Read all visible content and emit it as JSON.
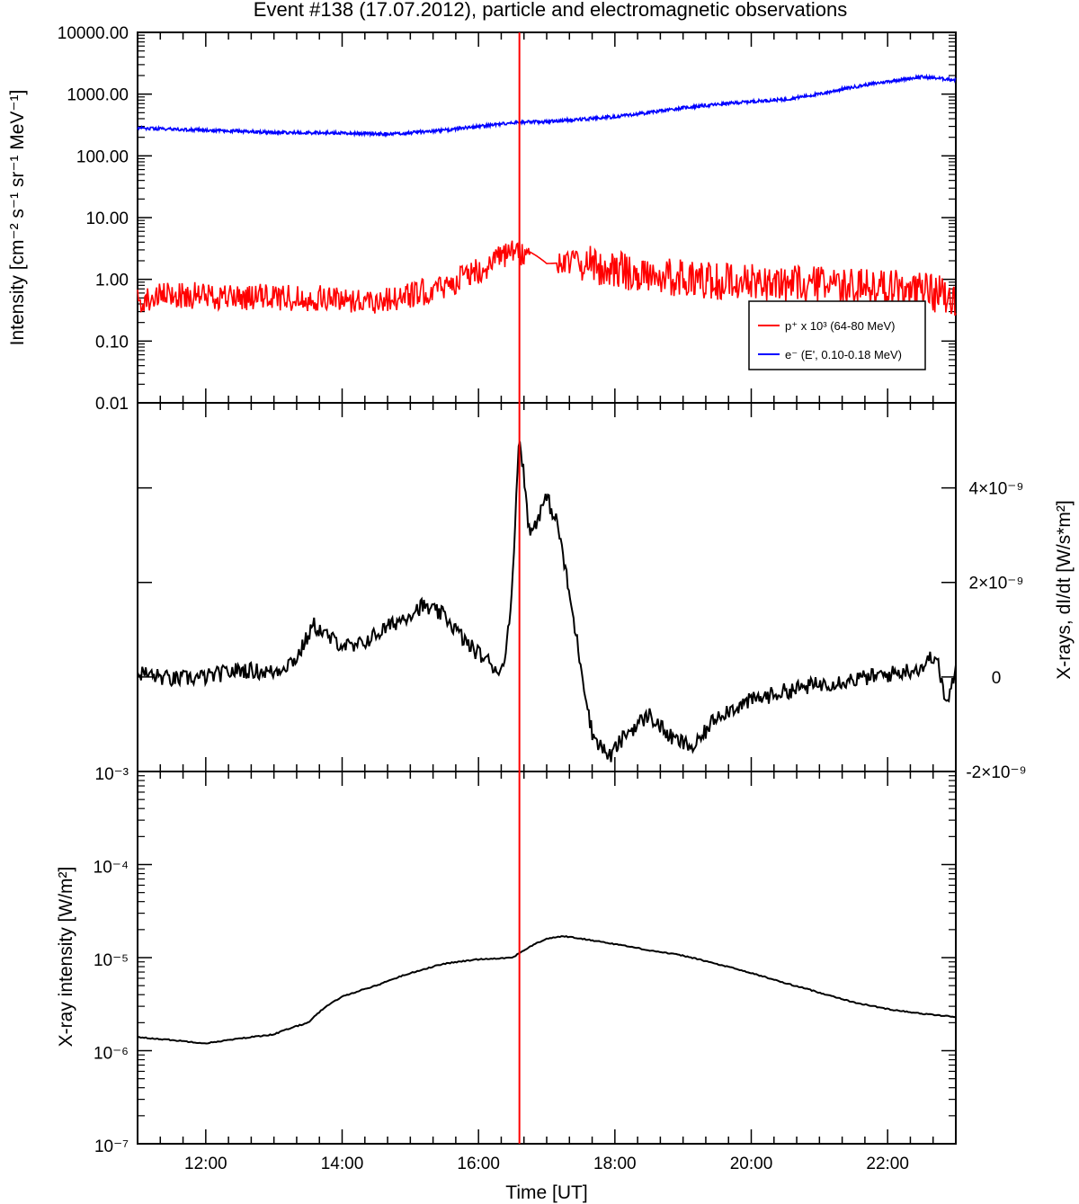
{
  "figure": {
    "title": "Event #138 (17.07.2012), particle and electromagnetic observations",
    "xlabel": "Time [UT]",
    "x_tick_labels": [
      "12:00",
      "14:00",
      "16:00",
      "18:00",
      "20:00",
      "22:00"
    ],
    "event_marker_time": "16:36"
  },
  "chart_data": [
    {
      "type": "line",
      "panel": "particles",
      "ylabel": "Intensity [cm⁻² s⁻¹ sr⁻¹ MeV⁻¹]",
      "yscale": "log",
      "ylim": [
        0.01,
        10000
      ],
      "y_tick_labels": [
        "10000.00",
        "1000.00",
        "100.00",
        "10.00",
        "1.00",
        "0.10",
        "0.01"
      ],
      "xlim": [
        "11:00",
        "23:00"
      ],
      "legend_position": "bottom-right",
      "series": [
        {
          "name": "p⁺ x 10³ (64-80 MeV)",
          "color": "#ff0000",
          "points": [
            [
              "11:00",
              0.45
            ],
            [
              "11:30",
              0.55
            ],
            [
              "12:00",
              0.55
            ],
            [
              "12:30",
              0.5
            ],
            [
              "13:00",
              0.52
            ],
            [
              "13:30",
              0.5
            ],
            [
              "14:00",
              0.48
            ],
            [
              "14:30",
              0.45
            ],
            [
              "15:00",
              0.55
            ],
            [
              "15:30",
              0.75
            ],
            [
              "16:00",
              1.4
            ],
            [
              "16:15",
              2.0
            ],
            [
              "16:30",
              2.6
            ],
            [
              "16:45",
              2.8
            ],
            [
              "17:00",
              1.8
            ],
            [
              "17:30",
              1.9
            ],
            [
              "18:00",
              1.4
            ],
            [
              "18:30",
              1.2
            ],
            [
              "19:00",
              1.05
            ],
            [
              "19:30",
              0.95
            ],
            [
              "20:00",
              0.9
            ],
            [
              "20:30",
              0.85
            ],
            [
              "21:00",
              0.8
            ],
            [
              "21:30",
              0.75
            ],
            [
              "22:00",
              0.75
            ],
            [
              "22:30",
              0.65
            ],
            [
              "23:00",
              0.5
            ]
          ]
        },
        {
          "name": "e⁻ (E', 0.10-0.18 MeV)",
          "color": "#0000ff",
          "points": [
            [
              "11:00",
              280
            ],
            [
              "12:00",
              260
            ],
            [
              "13:00",
              240
            ],
            [
              "14:00",
              235
            ],
            [
              "14:45",
              225
            ],
            [
              "15:30",
              260
            ],
            [
              "16:00",
              300
            ],
            [
              "16:36",
              350
            ],
            [
              "17:00",
              360
            ],
            [
              "17:30",
              390
            ],
            [
              "18:00",
              430
            ],
            [
              "18:30",
              500
            ],
            [
              "19:00",
              600
            ],
            [
              "19:30",
              680
            ],
            [
              "20:00",
              760
            ],
            [
              "20:30",
              820
            ],
            [
              "21:00",
              1000
            ],
            [
              "21:30",
              1300
            ],
            [
              "22:00",
              1600
            ],
            [
              "22:30",
              1900
            ],
            [
              "23:00",
              1700
            ]
          ]
        }
      ]
    },
    {
      "type": "line",
      "panel": "xray-derivative",
      "ylabel": "X-rays, dI/dt [W/s*m²]",
      "y_axis_side": "right",
      "ylim": [
        -2e-09,
        5.8e-09
      ],
      "y_tick_labels": [
        "4×10⁻⁹",
        "2×10⁻⁹",
        "0",
        "-2×10⁻⁹"
      ],
      "xlim": [
        "11:00",
        "23:00"
      ],
      "series": [
        {
          "color": "#000000",
          "points": [
            [
              "11:00",
              1e-10
            ],
            [
              "11:30",
              -5e-11
            ],
            [
              "12:00",
              0.0
            ],
            [
              "12:30",
              1.5e-10
            ],
            [
              "13:00",
              1e-10
            ],
            [
              "13:20",
              4e-10
            ],
            [
              "13:35",
              1.1e-09
            ],
            [
              "13:50",
              8e-10
            ],
            [
              "14:10",
              6e-10
            ],
            [
              "14:30",
              9e-10
            ],
            [
              "14:50",
              1.2e-09
            ],
            [
              "15:10",
              1.5e-09
            ],
            [
              "15:30",
              1.3e-09
            ],
            [
              "15:50",
              7e-10
            ],
            [
              "16:10",
              3e-10
            ],
            [
              "16:20",
              1e-10
            ],
            [
              "16:28",
              1.2e-09
            ],
            [
              "16:36",
              5.2e-09
            ],
            [
              "16:45",
              3e-09
            ],
            [
              "17:00",
              3.8e-09
            ],
            [
              "17:10",
              3.2e-09
            ],
            [
              "17:25",
              1e-09
            ],
            [
              "17:40",
              -1.2e-09
            ],
            [
              "17:55",
              -1.7e-09
            ],
            [
              "18:10",
              -1.2e-09
            ],
            [
              "18:30",
              -8e-10
            ],
            [
              "18:50",
              -1.3e-09
            ],
            [
              "19:10",
              -1.5e-09
            ],
            [
              "19:30",
              -8e-10
            ],
            [
              "20:00",
              -5e-10
            ],
            [
              "20:30",
              -3e-10
            ],
            [
              "21:00",
              -1.5e-10
            ],
            [
              "21:30",
              -5e-11
            ],
            [
              "22:00",
              5e-11
            ],
            [
              "22:30",
              2e-10
            ],
            [
              "22:42",
              5e-10
            ],
            [
              "22:52",
              -6e-10
            ],
            [
              "23:00",
              1e-10
            ]
          ]
        }
      ]
    },
    {
      "type": "line",
      "panel": "xray-intensity",
      "ylabel": "X-ray intensity [W/m²]",
      "yscale": "log",
      "ylim": [
        1e-07,
        0.001
      ],
      "y_tick_labels": [
        "10⁻³",
        "10⁻⁴",
        "10⁻⁵",
        "10⁻⁶",
        "10⁻⁷"
      ],
      "xlim": [
        "11:00",
        "23:00"
      ],
      "series": [
        {
          "color": "#000000",
          "points": [
            [
              "11:00",
              1.4e-06
            ],
            [
              "11:30",
              1.3e-06
            ],
            [
              "12:00",
              1.2e-06
            ],
            [
              "12:30",
              1.35e-06
            ],
            [
              "13:00",
              1.5e-06
            ],
            [
              "13:30",
              2e-06
            ],
            [
              "14:00",
              3.8e-06
            ],
            [
              "14:30",
              5e-06
            ],
            [
              "15:00",
              6.8e-06
            ],
            [
              "15:30",
              8.6e-06
            ],
            [
              "16:00",
              9.6e-06
            ],
            [
              "16:30",
              1e-05
            ],
            [
              "16:40",
              1.2e-05
            ],
            [
              "17:00",
              1.6e-05
            ],
            [
              "17:15",
              1.7e-05
            ],
            [
              "17:30",
              1.6e-05
            ],
            [
              "18:00",
              1.4e-05
            ],
            [
              "18:30",
              1.2e-05
            ],
            [
              "19:00",
              1.05e-05
            ],
            [
              "19:30",
              8.5e-06
            ],
            [
              "20:00",
              6.8e-06
            ],
            [
              "20:30",
              5.3e-06
            ],
            [
              "21:00",
              4.2e-06
            ],
            [
              "21:30",
              3.3e-06
            ],
            [
              "22:00",
              2.8e-06
            ],
            [
              "22:30",
              2.5e-06
            ],
            [
              "23:00",
              2.3e-06
            ]
          ]
        }
      ]
    }
  ]
}
